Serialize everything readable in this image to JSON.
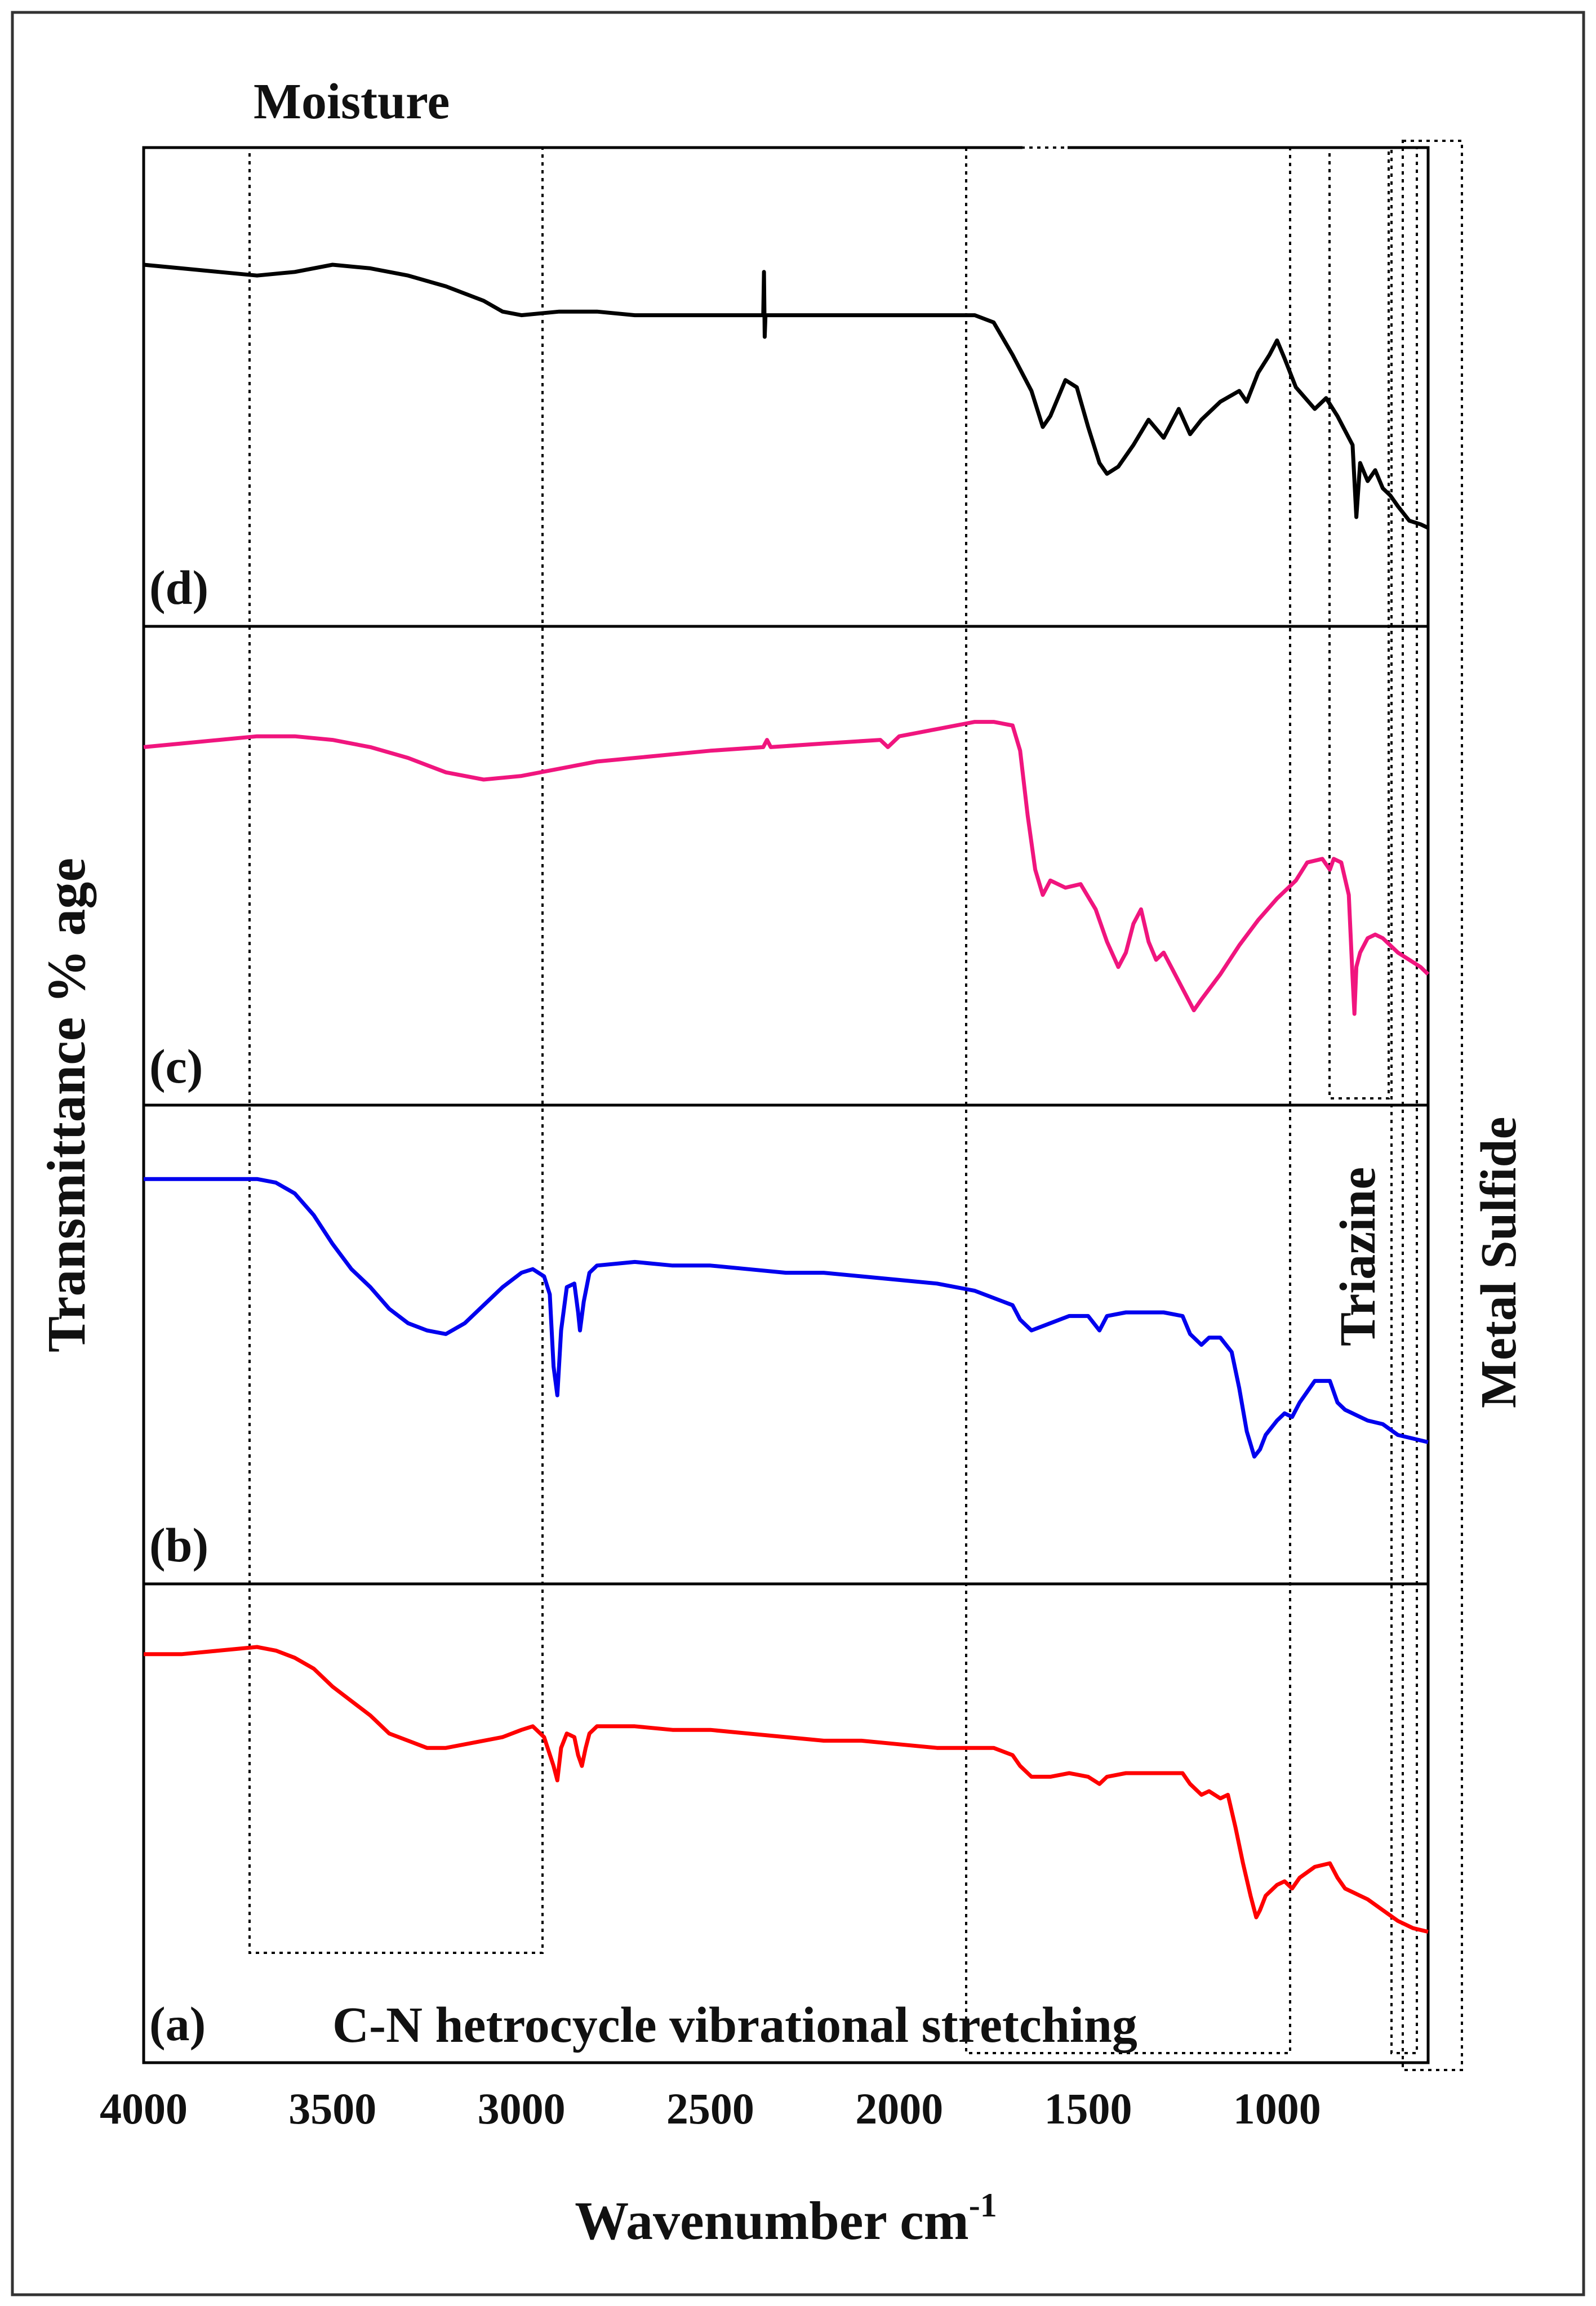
{
  "chart_data": {
    "type": "line",
    "xlabel": "Wavenumber cm",
    "xlabel_superscript": "-1",
    "ylabel": "Transmittance % age",
    "xlim": [
      4000,
      600
    ],
    "x_ticks": [
      4000,
      3500,
      3000,
      2500,
      2000,
      1500,
      1000
    ],
    "grid": false,
    "legend": "none",
    "panels": [
      {
        "label": "(d)",
        "color": "#000000",
        "ylim": [
          0,
          100
        ],
        "points": [
          [
            4000,
            80
          ],
          [
            3900,
            79
          ],
          [
            3800,
            78
          ],
          [
            3700,
            77
          ],
          [
            3600,
            78
          ],
          [
            3500,
            80
          ],
          [
            3400,
            79
          ],
          [
            3300,
            77
          ],
          [
            3200,
            74
          ],
          [
            3100,
            70
          ],
          [
            3050,
            67
          ],
          [
            3000,
            66
          ],
          [
            2900,
            67
          ],
          [
            2800,
            67
          ],
          [
            2700,
            66
          ],
          [
            2600,
            66
          ],
          [
            2500,
            66
          ],
          [
            2400,
            66
          ],
          [
            2360,
            66
          ],
          [
            2358,
            78
          ],
          [
            2356,
            60
          ],
          [
            2354,
            66
          ],
          [
            2300,
            66
          ],
          [
            2200,
            66
          ],
          [
            2100,
            66
          ],
          [
            2000,
            66
          ],
          [
            1900,
            66
          ],
          [
            1800,
            66
          ],
          [
            1750,
            64
          ],
          [
            1700,
            55
          ],
          [
            1650,
            45
          ],
          [
            1620,
            35
          ],
          [
            1600,
            38
          ],
          [
            1560,
            48
          ],
          [
            1530,
            46
          ],
          [
            1500,
            35
          ],
          [
            1470,
            25
          ],
          [
            1450,
            22
          ],
          [
            1420,
            24
          ],
          [
            1380,
            30
          ],
          [
            1340,
            37
          ],
          [
            1300,
            32
          ],
          [
            1260,
            40
          ],
          [
            1230,
            33
          ],
          [
            1200,
            37
          ],
          [
            1150,
            42
          ],
          [
            1100,
            45
          ],
          [
            1080,
            42
          ],
          [
            1050,
            50
          ],
          [
            1020,
            55
          ],
          [
            1000,
            59
          ],
          [
            980,
            54
          ],
          [
            950,
            46
          ],
          [
            900,
            40
          ],
          [
            870,
            43
          ],
          [
            840,
            38
          ],
          [
            800,
            30
          ],
          [
            790,
            10
          ],
          [
            780,
            25
          ],
          [
            760,
            20
          ],
          [
            740,
            23
          ],
          [
            720,
            18
          ],
          [
            700,
            16
          ],
          [
            680,
            13
          ],
          [
            650,
            9
          ],
          [
            620,
            8
          ],
          [
            600,
            7
          ]
        ]
      },
      {
        "label": "(c)",
        "color": "#f0157e",
        "ylim": [
          0,
          100
        ],
        "points": [
          [
            4000,
            79
          ],
          [
            3900,
            80
          ],
          [
            3800,
            81
          ],
          [
            3700,
            82
          ],
          [
            3600,
            82
          ],
          [
            3500,
            81
          ],
          [
            3400,
            79
          ],
          [
            3300,
            76
          ],
          [
            3200,
            72
          ],
          [
            3100,
            70
          ],
          [
            3000,
            71
          ],
          [
            2900,
            73
          ],
          [
            2800,
            75
          ],
          [
            2700,
            76
          ],
          [
            2600,
            77
          ],
          [
            2500,
            78
          ],
          [
            2360,
            79
          ],
          [
            2350,
            81
          ],
          [
            2340,
            79
          ],
          [
            2200,
            80
          ],
          [
            2050,
            81
          ],
          [
            2030,
            79
          ],
          [
            2000,
            82
          ],
          [
            1900,
            84
          ],
          [
            1800,
            86
          ],
          [
            1750,
            86
          ],
          [
            1700,
            85
          ],
          [
            1680,
            78
          ],
          [
            1660,
            60
          ],
          [
            1640,
            45
          ],
          [
            1620,
            38
          ],
          [
            1600,
            42
          ],
          [
            1560,
            40
          ],
          [
            1520,
            41
          ],
          [
            1480,
            34
          ],
          [
            1450,
            25
          ],
          [
            1420,
            18
          ],
          [
            1400,
            22
          ],
          [
            1380,
            30
          ],
          [
            1360,
            34
          ],
          [
            1340,
            25
          ],
          [
            1320,
            20
          ],
          [
            1300,
            22
          ],
          [
            1280,
            18
          ],
          [
            1260,
            14
          ],
          [
            1240,
            10
          ],
          [
            1220,
            6
          ],
          [
            1200,
            9
          ],
          [
            1150,
            16
          ],
          [
            1100,
            24
          ],
          [
            1050,
            31
          ],
          [
            1000,
            37
          ],
          [
            950,
            42
          ],
          [
            920,
            47
          ],
          [
            880,
            48
          ],
          [
            860,
            45
          ],
          [
            850,
            48
          ],
          [
            830,
            47
          ],
          [
            810,
            38
          ],
          [
            800,
            15
          ],
          [
            795,
            5
          ],
          [
            790,
            18
          ],
          [
            780,
            22
          ],
          [
            760,
            26
          ],
          [
            740,
            27
          ],
          [
            720,
            26
          ],
          [
            700,
            24
          ],
          [
            680,
            22
          ],
          [
            650,
            20
          ],
          [
            620,
            18
          ],
          [
            600,
            16
          ]
        ]
      },
      {
        "label": "(b)",
        "color": "#0000ee",
        "ylim": [
          0,
          100
        ],
        "points": [
          [
            4000,
            92
          ],
          [
            3900,
            92
          ],
          [
            3800,
            92
          ],
          [
            3700,
            92
          ],
          [
            3650,
            91
          ],
          [
            3600,
            88
          ],
          [
            3550,
            82
          ],
          [
            3500,
            74
          ],
          [
            3450,
            67
          ],
          [
            3400,
            62
          ],
          [
            3350,
            56
          ],
          [
            3300,
            52
          ],
          [
            3250,
            50
          ],
          [
            3200,
            49
          ],
          [
            3150,
            52
          ],
          [
            3100,
            57
          ],
          [
            3050,
            62
          ],
          [
            3000,
            66
          ],
          [
            2970,
            67
          ],
          [
            2940,
            65
          ],
          [
            2925,
            60
          ],
          [
            2915,
            40
          ],
          [
            2905,
            32
          ],
          [
            2895,
            50
          ],
          [
            2880,
            62
          ],
          [
            2860,
            63
          ],
          [
            2850,
            55
          ],
          [
            2845,
            50
          ],
          [
            2835,
            58
          ],
          [
            2820,
            66
          ],
          [
            2800,
            68
          ],
          [
            2700,
            69
          ],
          [
            2600,
            68
          ],
          [
            2500,
            68
          ],
          [
            2400,
            67
          ],
          [
            2300,
            66
          ],
          [
            2200,
            66
          ],
          [
            2100,
            65
          ],
          [
            2000,
            64
          ],
          [
            1900,
            63
          ],
          [
            1800,
            61
          ],
          [
            1750,
            59
          ],
          [
            1700,
            57
          ],
          [
            1680,
            53
          ],
          [
            1650,
            50
          ],
          [
            1600,
            52
          ],
          [
            1550,
            54
          ],
          [
            1500,
            54
          ],
          [
            1470,
            50
          ],
          [
            1450,
            54
          ],
          [
            1400,
            55
          ],
          [
            1300,
            55
          ],
          [
            1250,
            54
          ],
          [
            1230,
            49
          ],
          [
            1200,
            46
          ],
          [
            1180,
            48
          ],
          [
            1150,
            48
          ],
          [
            1120,
            44
          ],
          [
            1100,
            34
          ],
          [
            1080,
            22
          ],
          [
            1060,
            15
          ],
          [
            1045,
            17
          ],
          [
            1030,
            21
          ],
          [
            1000,
            25
          ],
          [
            980,
            27
          ],
          [
            960,
            26
          ],
          [
            940,
            30
          ],
          [
            900,
            36
          ],
          [
            860,
            36
          ],
          [
            840,
            30
          ],
          [
            820,
            28
          ],
          [
            800,
            27
          ],
          [
            760,
            25
          ],
          [
            720,
            24
          ],
          [
            680,
            21
          ],
          [
            640,
            20
          ],
          [
            600,
            19
          ]
        ]
      },
      {
        "label": "(a)",
        "color": "#ff0000",
        "ylim": [
          0,
          100
        ],
        "points": [
          [
            4000,
            93
          ],
          [
            3900,
            93
          ],
          [
            3800,
            94
          ],
          [
            3700,
            95
          ],
          [
            3650,
            94
          ],
          [
            3600,
            92
          ],
          [
            3550,
            89
          ],
          [
            3500,
            84
          ],
          [
            3450,
            80
          ],
          [
            3400,
            76
          ],
          [
            3350,
            71
          ],
          [
            3300,
            69
          ],
          [
            3250,
            67
          ],
          [
            3200,
            67
          ],
          [
            3150,
            68
          ],
          [
            3100,
            69
          ],
          [
            3050,
            70
          ],
          [
            3000,
            72
          ],
          [
            2970,
            73
          ],
          [
            2940,
            70
          ],
          [
            2915,
            62
          ],
          [
            2905,
            58
          ],
          [
            2895,
            67
          ],
          [
            2880,
            71
          ],
          [
            2860,
            70
          ],
          [
            2850,
            65
          ],
          [
            2840,
            62
          ],
          [
            2830,
            67
          ],
          [
            2820,
            71
          ],
          [
            2800,
            73
          ],
          [
            2700,
            73
          ],
          [
            2600,
            72
          ],
          [
            2500,
            72
          ],
          [
            2400,
            71
          ],
          [
            2300,
            70
          ],
          [
            2200,
            69
          ],
          [
            2100,
            69
          ],
          [
            2000,
            68
          ],
          [
            1900,
            67
          ],
          [
            1800,
            67
          ],
          [
            1750,
            67
          ],
          [
            1700,
            65
          ],
          [
            1680,
            62
          ],
          [
            1650,
            59
          ],
          [
            1600,
            59
          ],
          [
            1550,
            60
          ],
          [
            1500,
            59
          ],
          [
            1470,
            57
          ],
          [
            1450,
            59
          ],
          [
            1400,
            60
          ],
          [
            1300,
            60
          ],
          [
            1250,
            60
          ],
          [
            1230,
            57
          ],
          [
            1200,
            54
          ],
          [
            1180,
            55
          ],
          [
            1150,
            53
          ],
          [
            1130,
            54
          ],
          [
            1110,
            45
          ],
          [
            1090,
            35
          ],
          [
            1070,
            26
          ],
          [
            1055,
            20
          ],
          [
            1045,
            22
          ],
          [
            1030,
            26
          ],
          [
            1000,
            29
          ],
          [
            980,
            30
          ],
          [
            960,
            28
          ],
          [
            940,
            31
          ],
          [
            900,
            34
          ],
          [
            860,
            35
          ],
          [
            840,
            31
          ],
          [
            820,
            28
          ],
          [
            800,
            27
          ],
          [
            760,
            25
          ],
          [
            720,
            22
          ],
          [
            680,
            19
          ],
          [
            640,
            17
          ],
          [
            600,
            16
          ]
        ]
      }
    ],
    "annotations": [
      {
        "text": "Moisture",
        "region": [
          3700,
          2940
        ]
      },
      {
        "text": "C-N hetrocycle vibrational stretching",
        "region": [
          1850,
          1000
        ]
      },
      {
        "text": "Triazine",
        "region": [
          890,
          760
        ]
      },
      {
        "text": "Metal Sulfide",
        "region": [
          700,
          600
        ]
      }
    ]
  }
}
